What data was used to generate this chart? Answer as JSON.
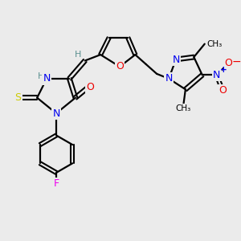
{
  "bg_color": "#ebebeb",
  "atom_colors": {
    "C": "#000000",
    "H": "#5a9090",
    "N": "#0000ee",
    "O": "#ee0000",
    "S": "#cccc00",
    "F": "#ee00ee",
    "plus": "#0000ee",
    "minus": "#ee0000"
  },
  "bond_color": "#000000",
  "bond_lw": 1.6,
  "figsize": [
    3.0,
    3.0
  ],
  "dpi": 100
}
